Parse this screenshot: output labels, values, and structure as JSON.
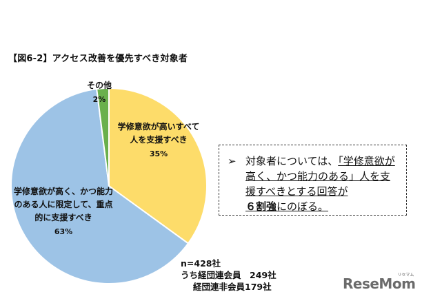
{
  "title": "【図6-2】アクセス改善を優先すべき対象者",
  "chart_data": {
    "type": "pie",
    "title": "【図6-2】アクセス改善を優先すべき対象者",
    "slices": [
      {
        "label": [
          "学修意欲が高いすべて",
          "人を支援すべき"
        ],
        "pct_label": "35%",
        "value": 35,
        "color": "#fddc6a"
      },
      {
        "label": [
          "学修意欲が高く、かつ能力",
          "のある人に限定して、重点",
          "的に支援すべき"
        ],
        "pct_label": "63%",
        "value": 63,
        "color": "#9dc3e6"
      },
      {
        "label": [
          "その他"
        ],
        "pct_label": "2%",
        "value": 2,
        "color": "#6ab04c"
      }
    ]
  },
  "callout": {
    "arrow": "➢",
    "text_a": "対象者については、",
    "text_b": "「学修意欲が高く、かつ能力のある」",
    "text_c": "人を支援すべきとする回答が",
    "text_d": "６割強",
    "text_e": "にのぼる。"
  },
  "note": {
    "line1": "n=428社",
    "line2": "うち経団連会員　249社",
    "line3": "経団連非会員179社"
  },
  "logo": {
    "text": "ReseMom",
    "sub": "リセマム"
  }
}
